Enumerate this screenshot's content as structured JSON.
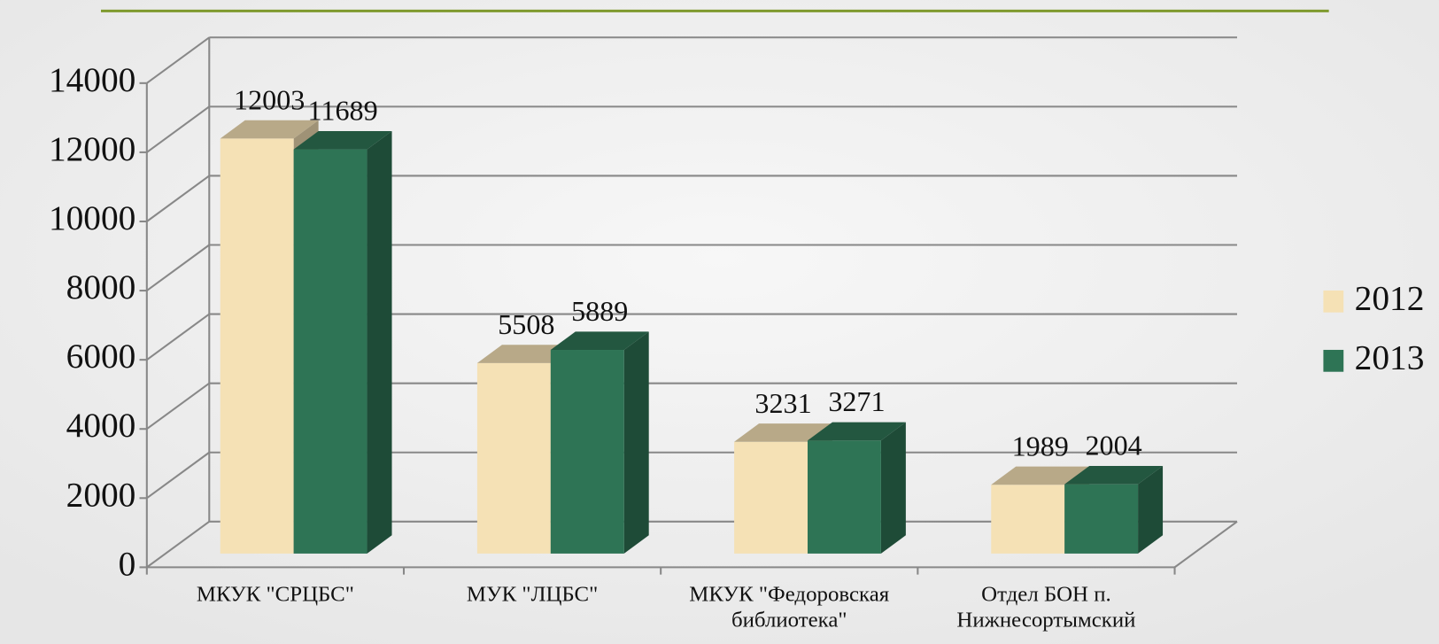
{
  "chart_data": {
    "type": "bar3d",
    "categories": [
      "МКУК \"СРЦБС\"",
      "МУК \"ЛЦБС\"",
      "МКУК \"Федоровская библиотека\"",
      "Отдел БОН п. Нижнесортымский"
    ],
    "series": [
      {
        "name": "2012",
        "color": "#f5e1b5",
        "values": [
          12003,
          5508,
          3231,
          1989
        ]
      },
      {
        "name": "2013",
        "color": "#2e7455",
        "values": [
          11689,
          5889,
          3271,
          2004
        ]
      }
    ],
    "ylim": [
      0,
      14000
    ],
    "yticks": [
      0,
      2000,
      4000,
      6000,
      8000,
      10000,
      12000,
      14000
    ],
    "grid": true,
    "legend": "right",
    "data_labels": true
  }
}
